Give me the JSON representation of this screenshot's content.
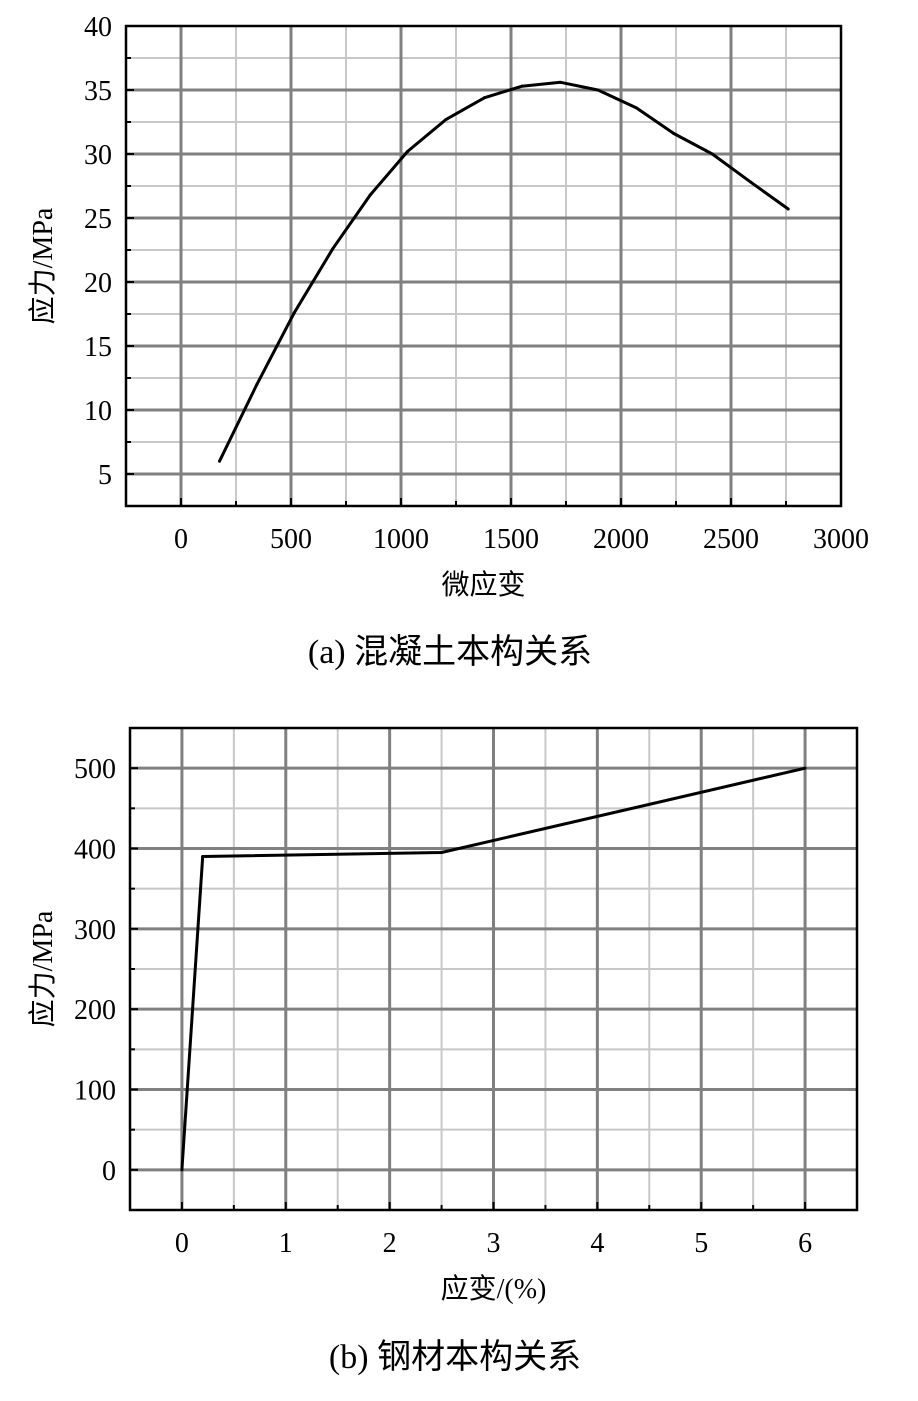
{
  "chart_data": [
    {
      "type": "line",
      "caption": "(a)  混凝土本构关系",
      "xlabel": "微应变",
      "ylabel": "应力/MPa",
      "xlim": [
        -250,
        3000
      ],
      "ylim": [
        2.5,
        40
      ],
      "xticks": [
        0,
        500,
        1000,
        1500,
        2000,
        2500,
        3000
      ],
      "xtick_labels": [
        "0",
        "500",
        "1000",
        "1500",
        "2000",
        "2500",
        "3000"
      ],
      "yticks": [
        5,
        10,
        15,
        20,
        25,
        30,
        35,
        40
      ],
      "ytick_labels": [
        "5",
        "10",
        "15",
        "20",
        "25",
        "30",
        "35",
        "40"
      ],
      "grid": true,
      "series": [
        {
          "x": [
            175,
            345,
            515,
            690,
            860,
            1030,
            1205,
            1380,
            1550,
            1725,
            1895,
            2070,
            2240,
            2415,
            2590,
            2760
          ],
          "y": [
            6.0,
            12.0,
            17.6,
            22.6,
            26.8,
            30.2,
            32.7,
            34.4,
            35.3,
            35.6,
            35.0,
            33.6,
            31.6,
            30.0,
            27.8,
            25.7
          ]
        }
      ]
    },
    {
      "type": "line",
      "caption": "(b)  钢材本构关系",
      "xlabel": "应变/(%)",
      "ylabel": "应力/MPa",
      "xlim": [
        -0.5,
        6.5
      ],
      "ylim": [
        -50,
        550
      ],
      "xticks": [
        0,
        1,
        2,
        3,
        4,
        5,
        6
      ],
      "xtick_labels": [
        "0",
        "1",
        "2",
        "3",
        "4",
        "5",
        "6"
      ],
      "yticks": [
        0,
        100,
        200,
        300,
        400,
        500
      ],
      "ytick_labels": [
        "0",
        "100",
        "200",
        "300",
        "400",
        "500"
      ],
      "grid": true,
      "series": [
        {
          "x": [
            0,
            0.2,
            2.5,
            6
          ],
          "y": [
            0,
            390,
            395,
            500
          ]
        }
      ]
    }
  ]
}
